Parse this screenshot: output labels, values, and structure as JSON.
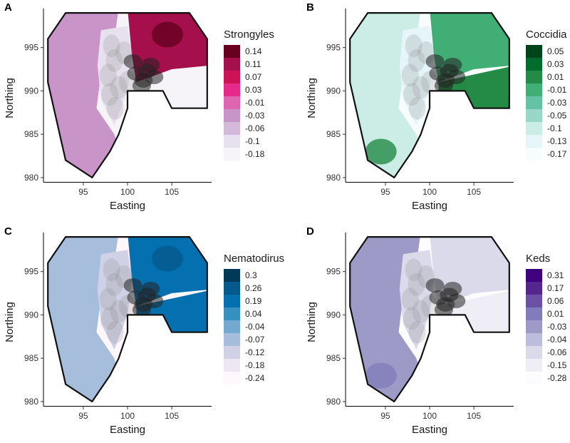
{
  "chart_data": [
    {
      "type": "heatmap",
      "panel_label": "A",
      "legend_title": "Strongyles",
      "xlabel": "Easting",
      "ylabel": "Northing",
      "xlim": [
        90.5,
        109.5
      ],
      "ylim": [
        979.5,
        999.5
      ],
      "x_ticks": [
        95,
        100,
        105
      ],
      "y_ticks": [
        980,
        985,
        990,
        995
      ],
      "levels": [
        "0.14",
        "0.11",
        "0.07",
        "0.03",
        "-0.01",
        "-0.03",
        "-0.06",
        "-0.1",
        "-0.18"
      ],
      "colors": [
        "#67001f",
        "#a50f4b",
        "#ce1256",
        "#e7298a",
        "#df65b0",
        "#c994c7",
        "#d4b9da",
        "#e7e1ef",
        "#f7f4f9"
      ],
      "left_zone_level": 5,
      "center_zone_level": 7,
      "right_zone_level": 1,
      "southeast_zone_level": 8
    },
    {
      "type": "heatmap",
      "panel_label": "B",
      "legend_title": "Coccidia",
      "xlabel": "Easting",
      "ylabel": "Northing",
      "xlim": [
        90.5,
        109.5
      ],
      "ylim": [
        979.5,
        999.5
      ],
      "x_ticks": [
        95,
        100,
        105
      ],
      "y_ticks": [
        980,
        985,
        990,
        995
      ],
      "levels": [
        "0.05",
        "0.03",
        "0.01",
        "-0.01",
        "-0.03",
        "-0.05",
        "-0.1",
        "-0.13",
        "-0.17"
      ],
      "colors": [
        "#00441b",
        "#006d2c",
        "#238b45",
        "#41ae76",
        "#66c2a4",
        "#99d8c9",
        "#ccece6",
        "#e5f5f9",
        "#f7fcfd"
      ],
      "left_zone_level": 6,
      "center_zone_level": 7,
      "right_zone_level": 3,
      "southeast_zone_level": 2
    },
    {
      "type": "heatmap",
      "panel_label": "C",
      "legend_title": "Nematodirus",
      "xlabel": "Easting",
      "ylabel": "Northing",
      "xlim": [
        90.5,
        109.5
      ],
      "ylim": [
        979.5,
        999.5
      ],
      "x_ticks": [
        95,
        100,
        105
      ],
      "y_ticks": [
        980,
        985,
        990,
        995
      ],
      "levels": [
        "0.3",
        "0.26",
        "0.19",
        "0.04",
        "-0.04",
        "-0.07",
        "-0.12",
        "-0.18",
        "-0.24"
      ],
      "colors": [
        "#023858",
        "#045a8d",
        "#0570b0",
        "#3690c0",
        "#74a9cf",
        "#a6bddb",
        "#d0d1e6",
        "#ece7f2",
        "#fff7fb"
      ],
      "left_zone_level": 5,
      "center_zone_level": 6,
      "right_zone_level": 2,
      "southeast_zone_level": 2
    },
    {
      "type": "heatmap",
      "panel_label": "D",
      "legend_title": "Keds",
      "xlabel": "Easting",
      "ylabel": "Northing",
      "xlim": [
        90.5,
        109.5
      ],
      "ylim": [
        979.5,
        999.5
      ],
      "x_ticks": [
        95,
        100,
        105
      ],
      "y_ticks": [
        980,
        985,
        990,
        995
      ],
      "levels": [
        "0.31",
        "0.17",
        "0.06",
        "0.01",
        "-0.03",
        "-0.04",
        "-0.06",
        "-0.15",
        "-0.28"
      ],
      "colors": [
        "#3f007d",
        "#54278f",
        "#6a51a3",
        "#807dba",
        "#9e9ac8",
        "#bcbddc",
        "#dadaeb",
        "#efedf5",
        "#fcfbfd"
      ],
      "left_zone_level": 4,
      "center_zone_level": 6,
      "right_zone_level": 6,
      "southeast_zone_level": 7
    }
  ],
  "map_boundary": {
    "description_units": "easting/northing",
    "vertices": [
      [
        93,
        999
      ],
      [
        107,
        999
      ],
      [
        109,
        996
      ],
      [
        109,
        988
      ],
      [
        105,
        988
      ],
      [
        104,
        990
      ],
      [
        100,
        990
      ],
      [
        100,
        988
      ],
      [
        99,
        985
      ],
      [
        98,
        983
      ],
      [
        96,
        980
      ],
      [
        93,
        982
      ],
      [
        91,
        991
      ],
      [
        91,
        996
      ]
    ]
  },
  "sheep_cluster": {
    "core": [
      [
        101.8,
        991.2
      ],
      [
        102.2,
        992.3
      ],
      [
        101.0,
        992.0
      ],
      [
        103.0,
        991.6
      ],
      [
        102.6,
        993.0
      ],
      [
        100.6,
        993.4
      ],
      [
        101.6,
        990.6
      ]
    ],
    "halo": [
      [
        98.5,
        993.5
      ],
      [
        97.8,
        991.8
      ],
      [
        98.0,
        989.6
      ],
      [
        98.6,
        988.0
      ],
      [
        99.6,
        994.4
      ],
      [
        100.0,
        991.0
      ],
      [
        99.0,
        990.4
      ],
      [
        98.2,
        995.2
      ]
    ]
  }
}
